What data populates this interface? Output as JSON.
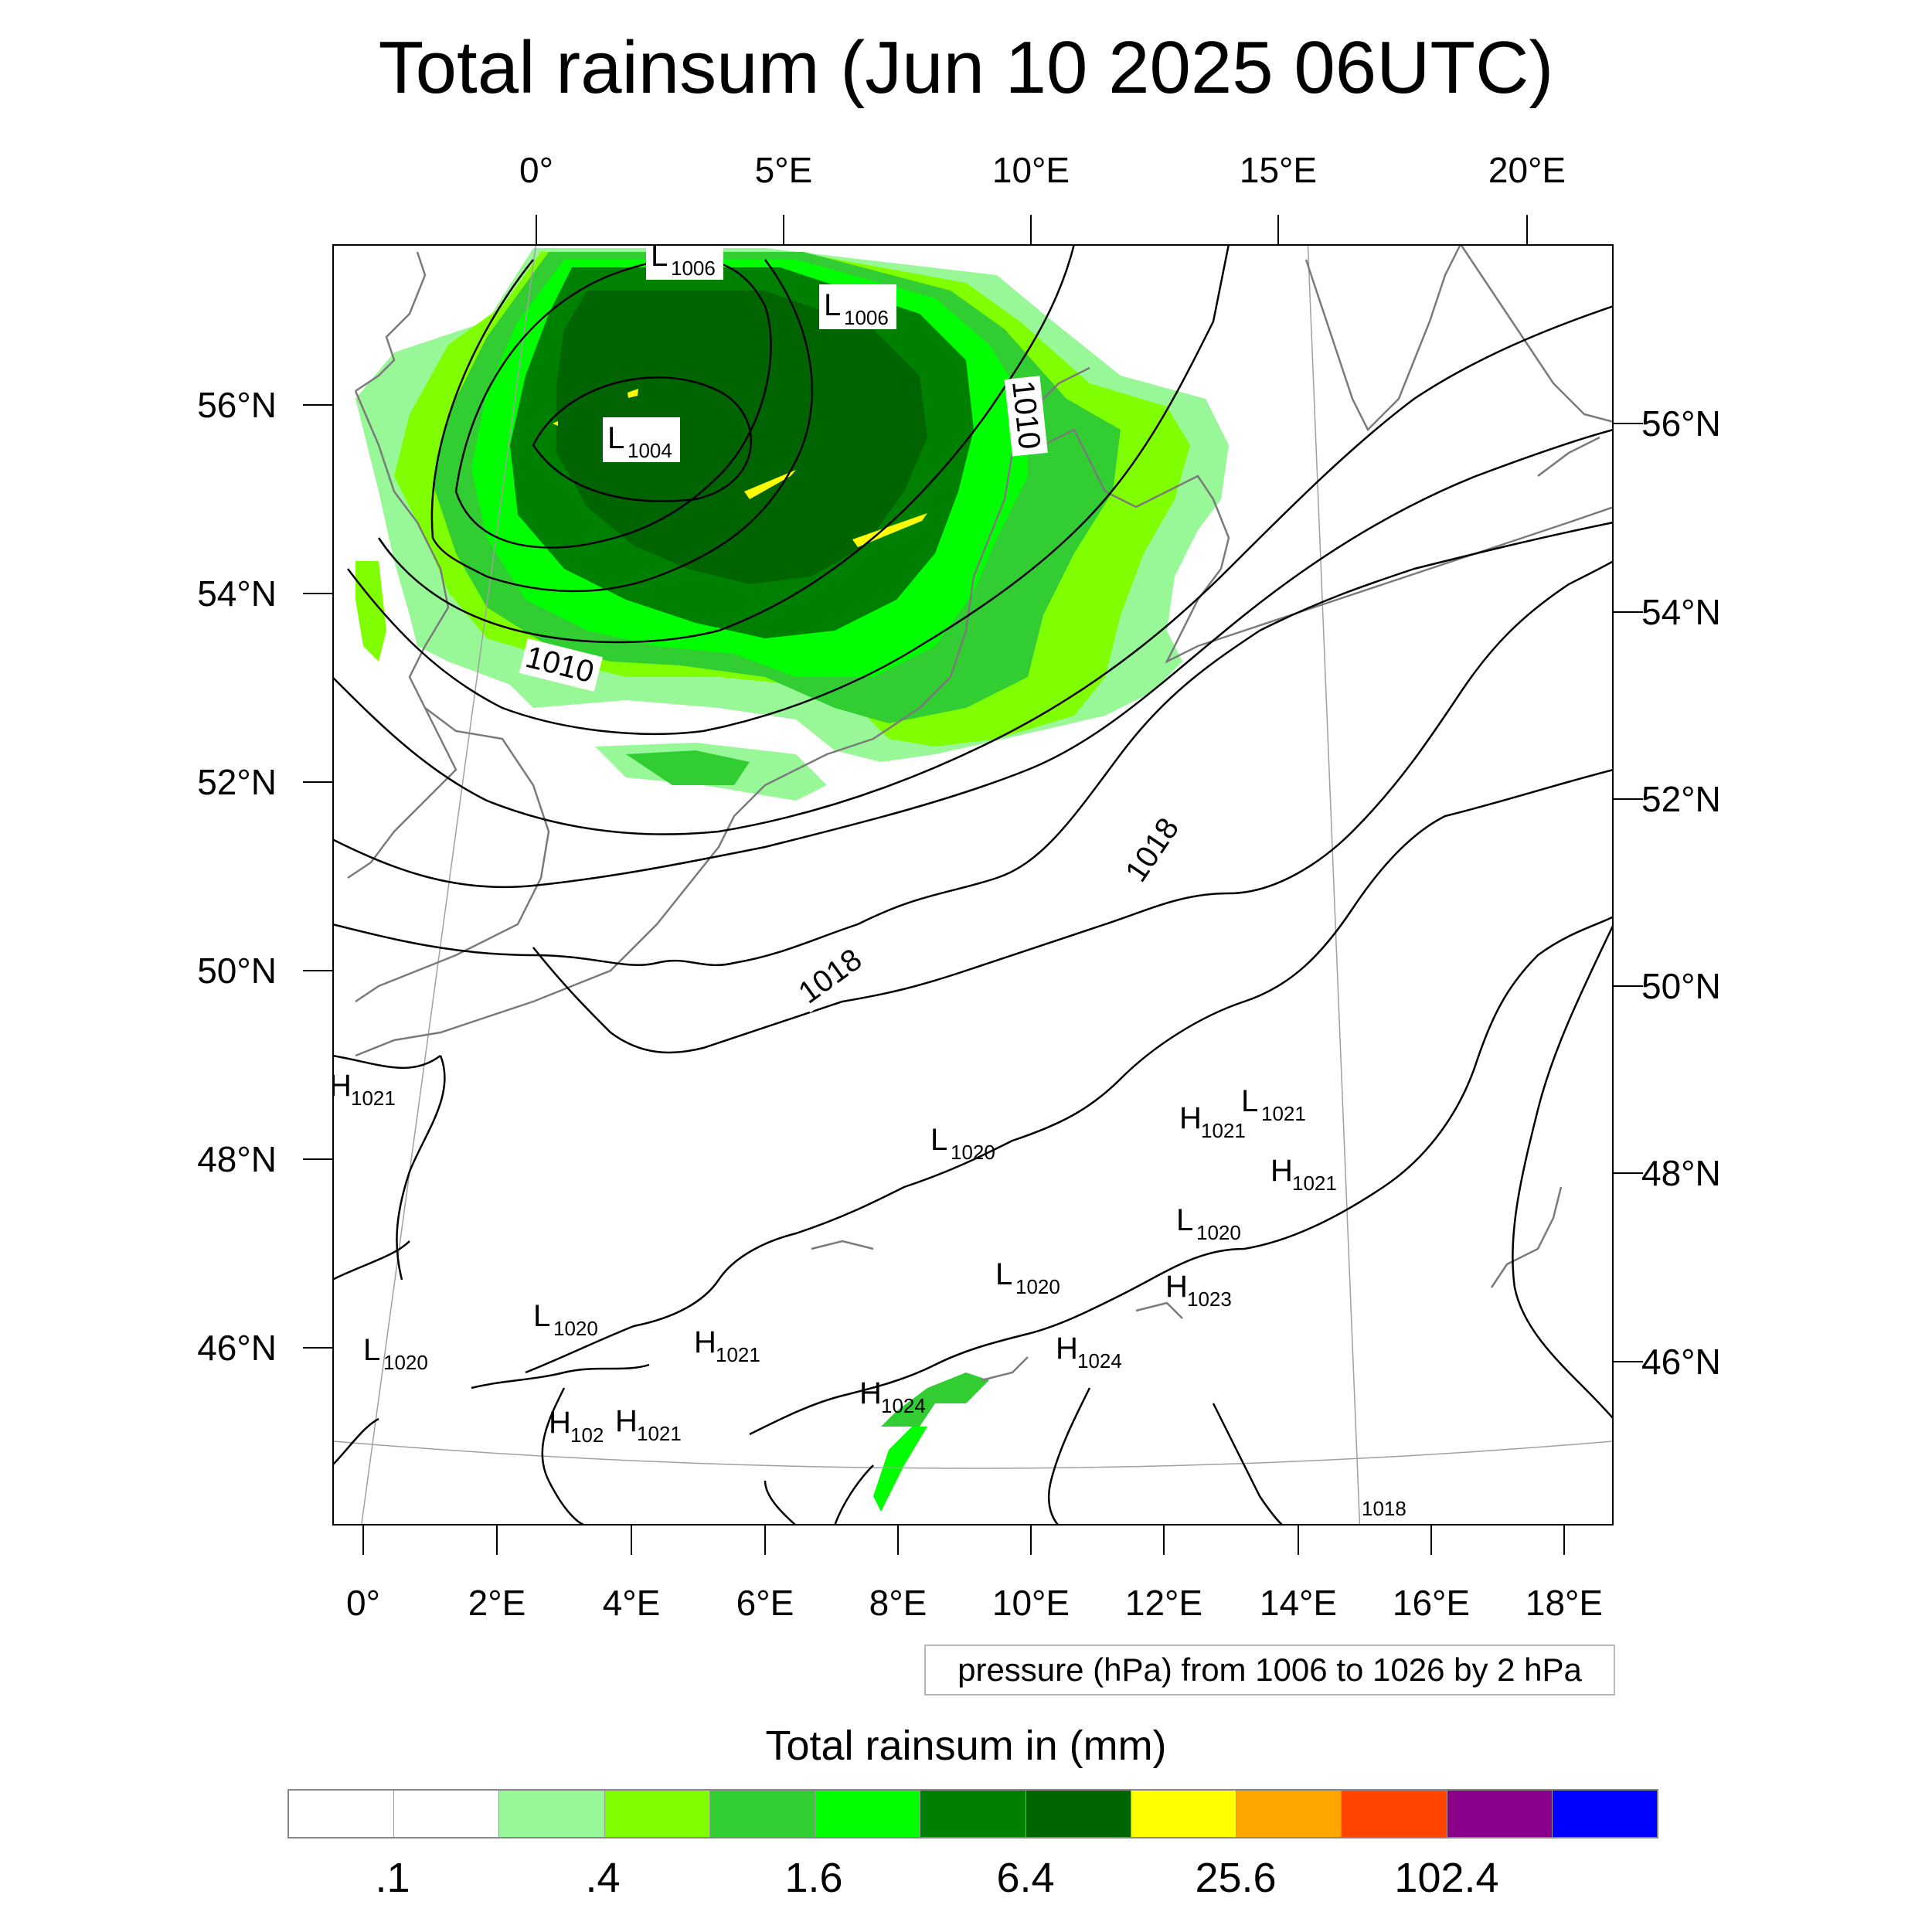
{
  "title": "Total rainsum (Jun 10 2025 06UTC)",
  "top_lon_labels": [
    "0°",
    "5°E",
    "10°E",
    "15°E",
    "20°E"
  ],
  "bottom_lon_labels": [
    "0°",
    "2°E",
    "4°E",
    "6°E",
    "8°E",
    "10°E",
    "12°E",
    "14°E",
    "16°E",
    "18°E"
  ],
  "left_lat_labels": [
    "56°N",
    "54°N",
    "52°N",
    "50°N",
    "48°N",
    "46°N"
  ],
  "right_lat_labels": [
    "56°N",
    "54°N",
    "52°N",
    "50°N",
    "48°N",
    "46°N"
  ],
  "pressure_note": "pressure (hPa) from 1006 to 1026 by 2 hPa",
  "colorbar": {
    "title": "Total rainsum in (mm)",
    "colors": [
      "#ffffff",
      "#ffffff",
      "#98f898",
      "#80ff00",
      "#32cd32",
      "#00ff00",
      "#008000",
      "#006400",
      "#ffff00",
      "#ffa500",
      "#ff4500",
      "#8b008b",
      "#0000ff"
    ],
    "labels": [
      ".1",
      ".4",
      "1.6",
      "6.4",
      "25.6",
      "102.4"
    ]
  },
  "contour_labels": [
    "1010",
    "1010",
    "1018",
    "1018",
    "1018"
  ],
  "pressure_centers": [
    {
      "type": "L",
      "value": "1006"
    },
    {
      "type": "L",
      "value": "1006"
    },
    {
      "type": "L",
      "value": "1004"
    },
    {
      "type": "H",
      "value": "1021"
    },
    {
      "type": "L",
      "value": "1020"
    },
    {
      "type": "H",
      "value": "1021"
    },
    {
      "type": "L",
      "value": "1021"
    },
    {
      "type": "H",
      "value": "1021"
    },
    {
      "type": "L",
      "value": "1020"
    },
    {
      "type": "L",
      "value": "1020"
    },
    {
      "type": "H",
      "value": "1023"
    },
    {
      "type": "L",
      "value": "1020"
    },
    {
      "type": "L",
      "value": "1020"
    },
    {
      "type": "H",
      "value": "1021"
    },
    {
      "type": "H",
      "value": "1024"
    },
    {
      "type": "H",
      "value": "1024"
    },
    {
      "type": "H",
      "value": "102"
    },
    {
      "type": "H",
      "value": "1021"
    }
  ]
}
